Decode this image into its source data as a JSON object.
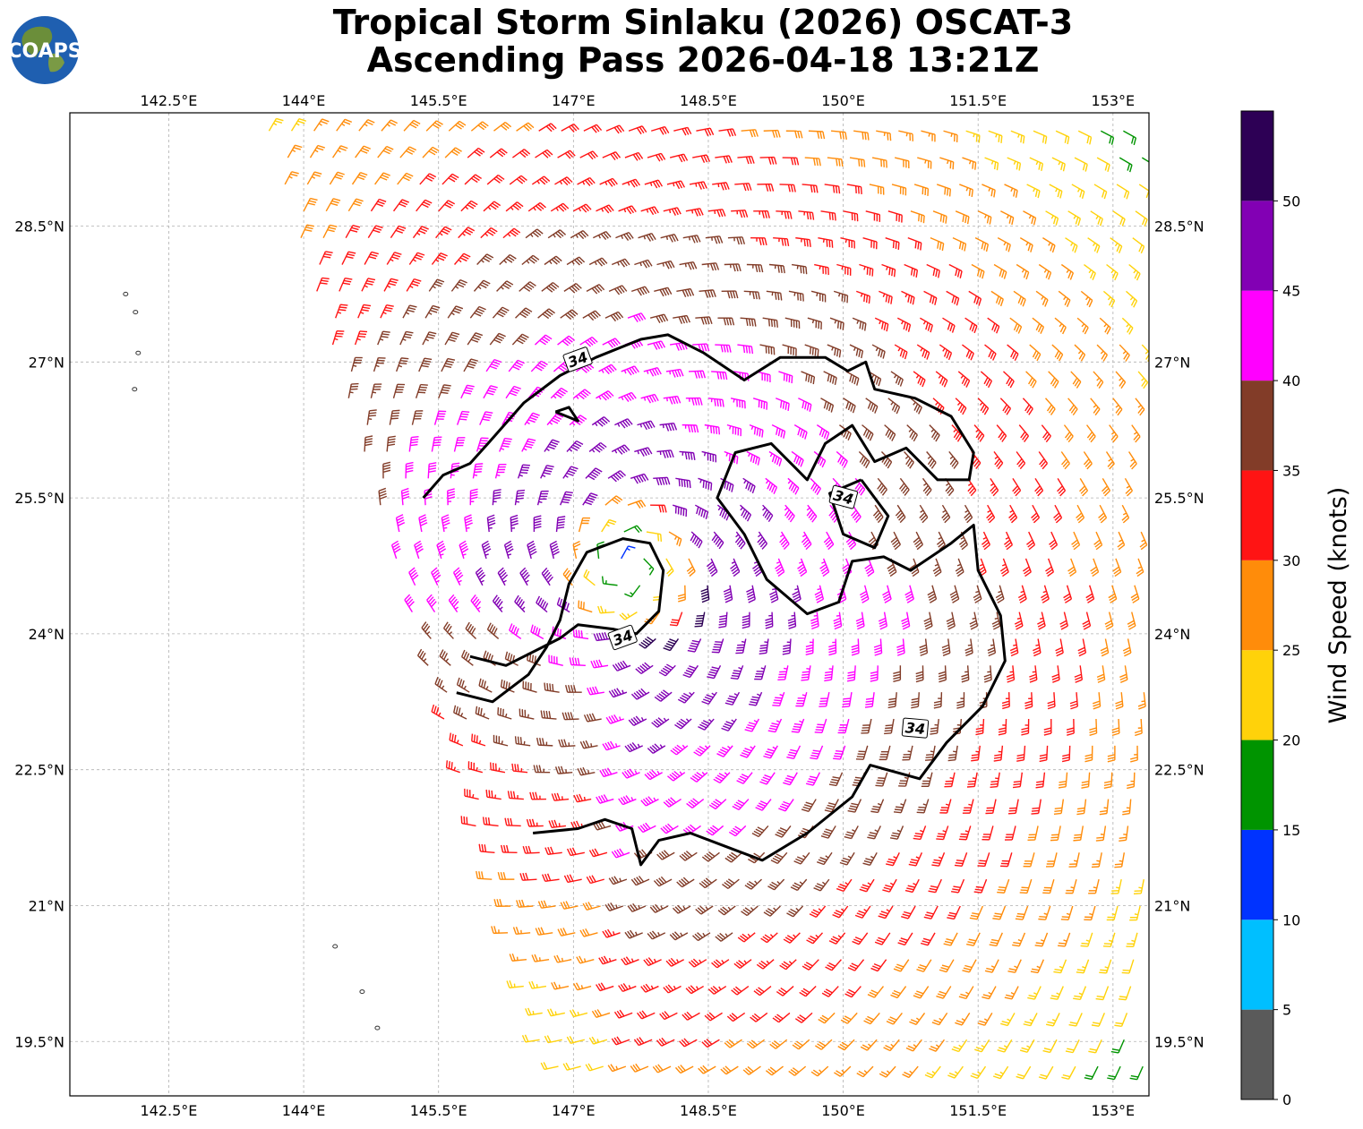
{
  "title": {
    "line1": "Tropical Storm Sinlaku (2026) OSCAT-3",
    "line2": "Ascending Pass 2026-04-18 13:21Z"
  },
  "logo": {
    "text": "COAPS"
  },
  "map": {
    "lon_range": [
      141.4,
      153.4
    ],
    "lat_range": [
      18.9,
      29.75
    ],
    "lon_ticks": [
      "142.5°E",
      "144°E",
      "145.5°E",
      "147°E",
      "148.5°E",
      "150°E",
      "151.5°E",
      "153°E"
    ],
    "lon_tick_values": [
      142.5,
      144,
      145.5,
      147,
      148.5,
      150,
      151.5,
      153
    ],
    "lat_ticks": [
      "28.5°N",
      "27°N",
      "25.5°N",
      "24°N",
      "22.5°N",
      "21°N",
      "19.5°N"
    ],
    "lat_tick_values": [
      28.5,
      27,
      25.5,
      24,
      22.5,
      21,
      19.5
    ],
    "gridlines": true,
    "storm_center": {
      "lon": 147.6,
      "lat": 24.75
    },
    "contour_level": "34",
    "contour_labels": [
      "34",
      "34",
      "34",
      "34"
    ]
  },
  "colorbar": {
    "label": "Wind Speed (knots)",
    "ticks": [
      "0",
      "5",
      "10",
      "15",
      "20",
      "25",
      "30",
      "35",
      "40",
      "45",
      "50"
    ],
    "bins": [
      {
        "min": 0,
        "max": 5,
        "color": "#5a5a5a"
      },
      {
        "min": 5,
        "max": 10,
        "color": "#00bfff"
      },
      {
        "min": 10,
        "max": 15,
        "color": "#0033ff"
      },
      {
        "min": 15,
        "max": 20,
        "color": "#009400"
      },
      {
        "min": 20,
        "max": 25,
        "color": "#ffd20a"
      },
      {
        "min": 25,
        "max": 30,
        "color": "#ff8c0a"
      },
      {
        "min": 30,
        "max": 35,
        "color": "#ff1414"
      },
      {
        "min": 35,
        "max": 40,
        "color": "#823c28"
      },
      {
        "min": 40,
        "max": 45,
        "color": "#ff00ff"
      },
      {
        "min": 45,
        "max": 50,
        "color": "#8200b4"
      },
      {
        "min": 50,
        "max": 55,
        "color": "#2d0055"
      }
    ]
  }
}
